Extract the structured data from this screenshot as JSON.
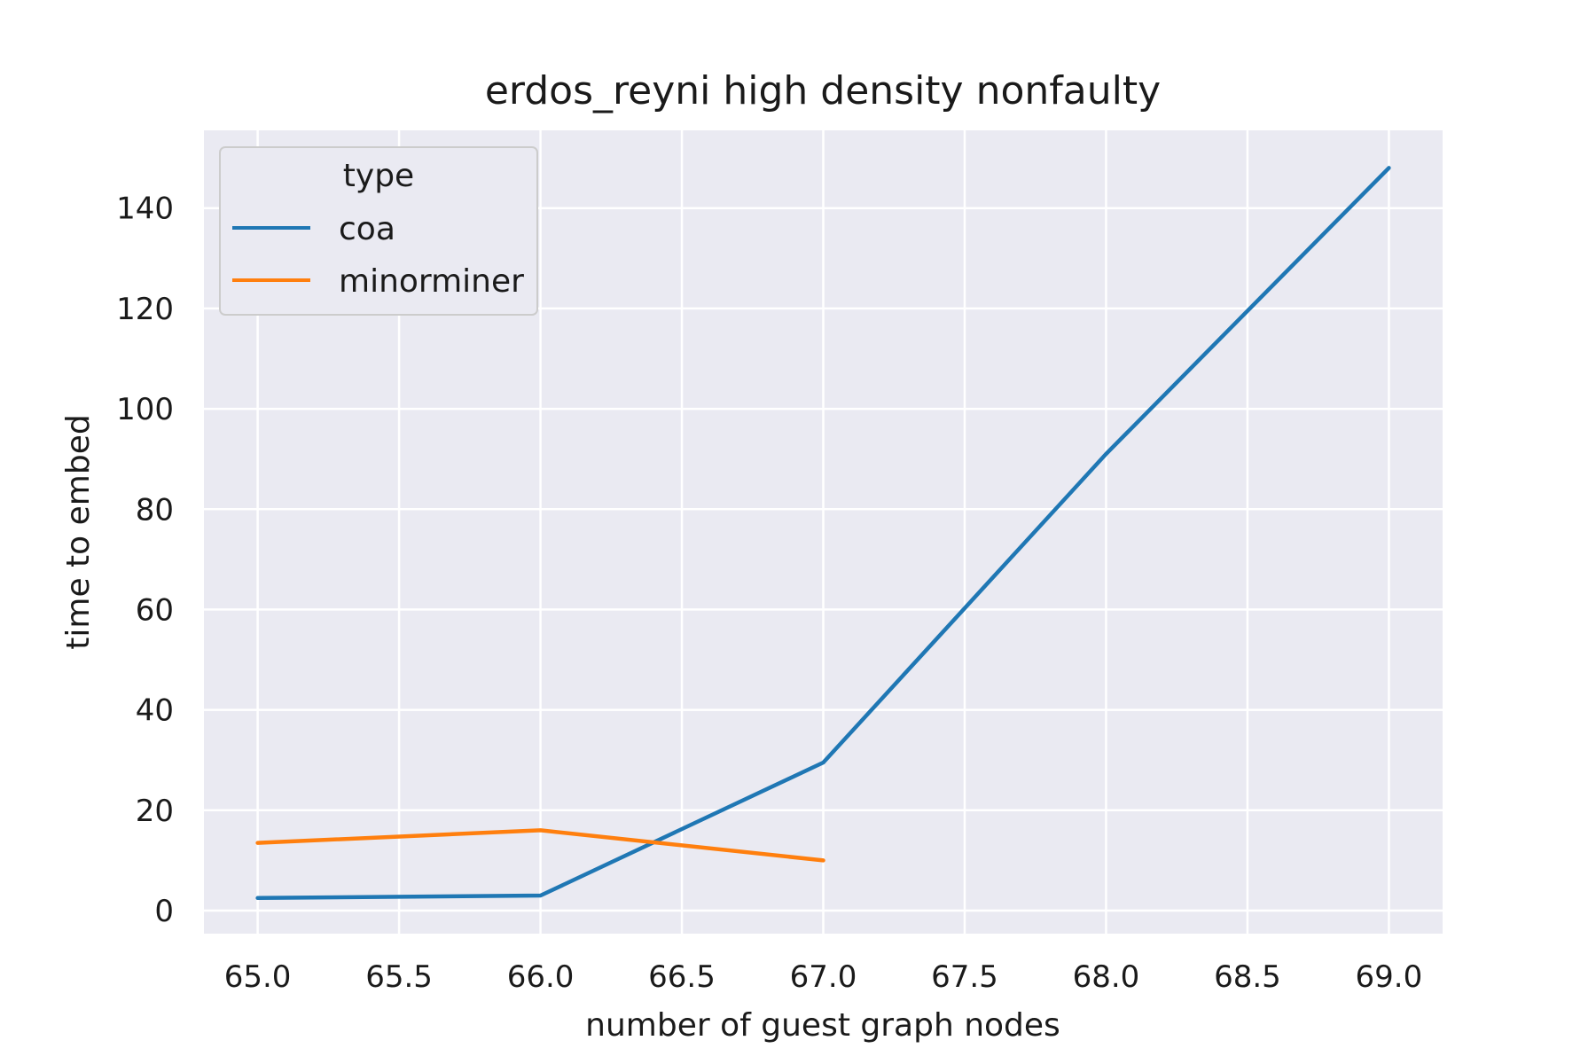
{
  "chart_data": {
    "type": "line",
    "title": "erdos_reyni high density nonfaulty",
    "xlabel": "number of guest graph nodes",
    "ylabel": "time to embed",
    "xlim": [
      64.81,
      69.19
    ],
    "ylim": [
      -4.6,
      155.5
    ],
    "x_ticks": [
      65.0,
      65.5,
      66.0,
      66.5,
      67.0,
      67.5,
      68.0,
      68.5,
      69.0
    ],
    "x_tick_labels": [
      "65.0",
      "65.5",
      "66.0",
      "66.5",
      "67.0",
      "67.5",
      "68.0",
      "68.5",
      "69.0"
    ],
    "y_ticks": [
      0,
      20,
      40,
      60,
      80,
      100,
      120,
      140
    ],
    "y_tick_labels": [
      "0",
      "20",
      "40",
      "60",
      "80",
      "100",
      "120",
      "140"
    ],
    "grid": true,
    "legend": {
      "title": "type",
      "placement": "top-left"
    },
    "series": [
      {
        "name": "coa",
        "color": "#1f77b4",
        "x": [
          65,
          66,
          67,
          68,
          69
        ],
        "y": [
          2.5,
          3.0,
          29.5,
          91,
          148
        ]
      },
      {
        "name": "minorminer",
        "color": "#ff7f0e",
        "x": [
          65,
          66,
          67
        ],
        "y": [
          13.5,
          16.0,
          10.0
        ]
      }
    ]
  }
}
